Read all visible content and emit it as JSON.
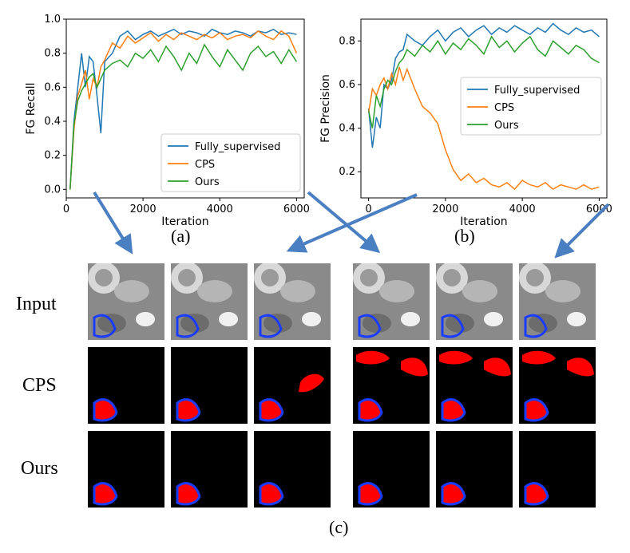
{
  "chart_data": [
    {
      "type": "line",
      "panel": "(a)",
      "xlabel": "Iteration",
      "ylabel": "FG Recall",
      "xlim": [
        0,
        6200
      ],
      "ylim": [
        -0.05,
        1.0
      ],
      "xticks": [
        0,
        2000,
        4000,
        6000
      ],
      "yticks": [
        0.0,
        0.2,
        0.4,
        0.6,
        0.8,
        1.0
      ],
      "ytick_labels": [
        "0.0",
        "0.2",
        "0.4",
        "0.6",
        "0.8",
        "1.0"
      ],
      "legend": "bottom-right",
      "grid": false,
      "x": [
        100,
        200,
        300,
        400,
        500,
        600,
        700,
        800,
        900,
        1000,
        1200,
        1400,
        1600,
        1800,
        2000,
        2200,
        2400,
        2600,
        2800,
        3000,
        3200,
        3400,
        3600,
        3800,
        4000,
        4200,
        4400,
        4600,
        4800,
        5000,
        5200,
        5400,
        5600,
        5800,
        6000
      ],
      "series": [
        {
          "name": "Fully_supervised",
          "color": "#1f77b4",
          "values": [
            0.0,
            0.4,
            0.6,
            0.8,
            0.6,
            0.78,
            0.75,
            0.55,
            0.33,
            0.75,
            0.8,
            0.9,
            0.93,
            0.88,
            0.91,
            0.93,
            0.9,
            0.92,
            0.94,
            0.91,
            0.93,
            0.92,
            0.9,
            0.94,
            0.92,
            0.91,
            0.93,
            0.92,
            0.9,
            0.93,
            0.92,
            0.94,
            0.91,
            0.92,
            0.91
          ]
        },
        {
          "name": "CPS",
          "color": "#ff7f0e",
          "values": [
            0.0,
            0.35,
            0.55,
            0.62,
            0.7,
            0.53,
            0.65,
            0.6,
            0.72,
            0.76,
            0.86,
            0.83,
            0.9,
            0.86,
            0.89,
            0.92,
            0.87,
            0.91,
            0.88,
            0.92,
            0.9,
            0.88,
            0.91,
            0.89,
            0.92,
            0.88,
            0.9,
            0.91,
            0.89,
            0.93,
            0.9,
            0.88,
            0.93,
            0.9,
            0.8
          ]
        },
        {
          "name": "Ours",
          "color": "#2ca02c",
          "values": [
            0.0,
            0.38,
            0.52,
            0.58,
            0.62,
            0.66,
            0.68,
            0.6,
            0.65,
            0.7,
            0.74,
            0.76,
            0.72,
            0.8,
            0.77,
            0.82,
            0.75,
            0.84,
            0.78,
            0.7,
            0.8,
            0.74,
            0.85,
            0.78,
            0.72,
            0.82,
            0.76,
            0.7,
            0.8,
            0.84,
            0.78,
            0.81,
            0.74,
            0.82,
            0.75
          ]
        }
      ]
    },
    {
      "type": "line",
      "panel": "(b)",
      "xlabel": "Iteration",
      "ylabel": "FG Precision",
      "xlim": [
        -200,
        6200
      ],
      "ylim": [
        0.08,
        0.9
      ],
      "xticks": [
        0,
        2000,
        4000,
        6000
      ],
      "yticks": [
        0.2,
        0.4,
        0.6,
        0.8
      ],
      "ytick_labels": [
        "0.2",
        "0.4",
        "0.6",
        "0.8"
      ],
      "legend": "right",
      "grid": false,
      "x": [
        0,
        100,
        200,
        300,
        400,
        500,
        600,
        700,
        800,
        900,
        1000,
        1200,
        1400,
        1600,
        1800,
        2000,
        2200,
        2400,
        2600,
        2800,
        3000,
        3200,
        3400,
        3600,
        3800,
        4000,
        4200,
        4400,
        4600,
        4800,
        5000,
        5200,
        5400,
        5600,
        5800,
        6000
      ],
      "series": [
        {
          "name": "Fully_supervised",
          "color": "#1f77b4",
          "values": [
            0.49,
            0.31,
            0.45,
            0.4,
            0.6,
            0.58,
            0.62,
            0.72,
            0.75,
            0.76,
            0.83,
            0.8,
            0.78,
            0.82,
            0.85,
            0.8,
            0.84,
            0.86,
            0.82,
            0.85,
            0.87,
            0.83,
            0.86,
            0.84,
            0.87,
            0.85,
            0.83,
            0.86,
            0.84,
            0.88,
            0.85,
            0.83,
            0.86,
            0.84,
            0.85,
            0.82
          ]
        },
        {
          "name": "CPS",
          "color": "#ff7f0e",
          "values": [
            0.47,
            0.58,
            0.55,
            0.6,
            0.63,
            0.58,
            0.65,
            0.6,
            0.68,
            0.62,
            0.67,
            0.58,
            0.5,
            0.47,
            0.42,
            0.3,
            0.21,
            0.16,
            0.19,
            0.15,
            0.17,
            0.14,
            0.13,
            0.15,
            0.12,
            0.16,
            0.14,
            0.13,
            0.15,
            0.12,
            0.14,
            0.13,
            0.12,
            0.14,
            0.12,
            0.13
          ]
        },
        {
          "name": "Ours",
          "color": "#2ca02c",
          "values": [
            0.48,
            0.4,
            0.55,
            0.5,
            0.58,
            0.62,
            0.6,
            0.66,
            0.7,
            0.72,
            0.76,
            0.73,
            0.78,
            0.75,
            0.8,
            0.74,
            0.79,
            0.76,
            0.81,
            0.78,
            0.74,
            0.82,
            0.77,
            0.8,
            0.75,
            0.79,
            0.82,
            0.76,
            0.73,
            0.8,
            0.77,
            0.74,
            0.78,
            0.76,
            0.72,
            0.7
          ]
        }
      ]
    }
  ],
  "panel_labels": {
    "a": "(a)",
    "b": "(b)",
    "c": "(c)"
  },
  "row_labels": {
    "input": "Input",
    "cps": "CPS",
    "ours": "Ours"
  },
  "colors": {
    "arrow": "#4a7fc1",
    "contour": "#1a3cff",
    "mask": "#ff0000",
    "background": "#000000"
  }
}
